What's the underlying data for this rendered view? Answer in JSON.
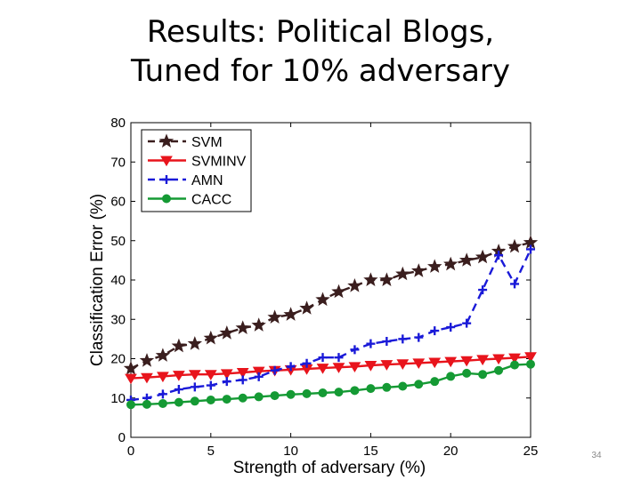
{
  "slide": {
    "title_line1": "Results: Political Blogs,",
    "title_line2": "Tuned for 10% adversary",
    "number": "34"
  },
  "chart_data": {
    "type": "line",
    "title": "",
    "xlabel": "Strength of adversary (%)",
    "ylabel": "Classification Error (%)",
    "xlim": [
      0,
      25
    ],
    "ylim": [
      0,
      80
    ],
    "xticks": [
      0,
      5,
      10,
      15,
      20,
      25
    ],
    "yticks": [
      0,
      10,
      20,
      30,
      40,
      50,
      60,
      70,
      80
    ],
    "legend_position": "top-left",
    "grid": false,
    "x": [
      0,
      1,
      2,
      3,
      4,
      5,
      6,
      7,
      8,
      9,
      10,
      11,
      12,
      13,
      14,
      15,
      16,
      17,
      18,
      19,
      20,
      21,
      22,
      23,
      24,
      25
    ],
    "series": [
      {
        "name": "SVM",
        "color": "#3a1e1e",
        "linestyle": "dashed",
        "marker": "star",
        "values": [
          17.5,
          19.5,
          20.8,
          23.2,
          23.8,
          25.2,
          26.5,
          27.8,
          28.5,
          30.5,
          31.2,
          32.8,
          35.0,
          37.0,
          38.5,
          40.0,
          40.0,
          41.5,
          42.3,
          43.4,
          44.0,
          45.0,
          45.8,
          47.3,
          48.5,
          49.5
        ]
      },
      {
        "name": "SVMINV",
        "color": "#e8141c",
        "linestyle": "solid",
        "marker": "triangle-down",
        "values": [
          15.0,
          15.2,
          15.5,
          15.8,
          16.0,
          16.0,
          16.2,
          16.5,
          16.8,
          17.0,
          17.2,
          17.4,
          17.6,
          17.8,
          18.0,
          18.3,
          18.5,
          18.7,
          18.9,
          19.1,
          19.3,
          19.5,
          19.8,
          20.0,
          20.2,
          20.5
        ]
      },
      {
        "name": "AMN",
        "color": "#1a1ad8",
        "linestyle": "dashed",
        "marker": "plus",
        "values": [
          9.5,
          10.0,
          11.0,
          12.2,
          12.8,
          13.2,
          14.2,
          14.6,
          15.4,
          17.0,
          18.0,
          18.8,
          20.3,
          20.3,
          22.3,
          23.8,
          24.4,
          25.0,
          25.4,
          27.1,
          28.0,
          29.0,
          37.5,
          46.3,
          39.0,
          47.8
        ]
      },
      {
        "name": "CACC",
        "color": "#159a34",
        "linestyle": "solid",
        "marker": "circle",
        "values": [
          8.3,
          8.4,
          8.6,
          8.9,
          9.2,
          9.5,
          9.7,
          10.0,
          10.3,
          10.6,
          10.9,
          11.1,
          11.3,
          11.5,
          11.9,
          12.4,
          12.7,
          13.0,
          13.5,
          14.2,
          15.5,
          16.3,
          16.0,
          17.0,
          18.4,
          18.6
        ]
      }
    ]
  }
}
